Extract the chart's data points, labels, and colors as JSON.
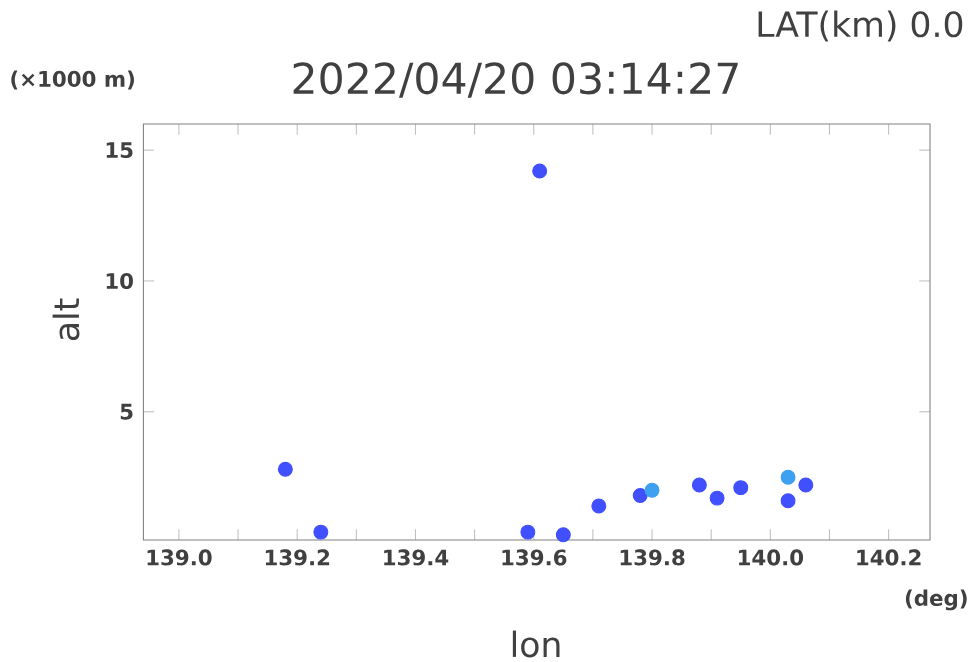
{
  "chart_data": {
    "type": "scatter",
    "title": "2022/04/20 03:14:27",
    "subtitle": "LAT(km) 0.0",
    "xlabel": "lon",
    "ylabel": "alt",
    "annotations": [
      "(×1000 m)",
      "(deg)"
    ],
    "xlim": [
      138.94,
      140.27
    ],
    "ylim": [
      0.1,
      16
    ],
    "xticks": [
      {
        "value": 139.0,
        "label": "139.0"
      },
      {
        "value": 139.1,
        "label": null
      },
      139.2,
      {
        "value": 139.3,
        "label": null
      },
      139.4,
      {
        "value": 139.5,
        "label": null
      },
      139.6,
      {
        "value": 139.7,
        "label": null
      },
      139.8,
      {
        "value": 139.9,
        "label": null
      },
      {
        "value": 140.0,
        "label": "140.0"
      },
      {
        "value": 140.1,
        "label": null
      },
      140.2
    ],
    "yticks": [
      5,
      10,
      15
    ],
    "grid": false,
    "marker": "circle",
    "series": [
      {
        "color": "#4050ff",
        "x": [
          139.18,
          139.61,
          139.24,
          139.59,
          139.65,
          139.71,
          139.78,
          139.88,
          139.91,
          139.95,
          140.03,
          140.06
        ],
        "values": [
          2.8,
          14.2,
          0.4,
          0.4,
          0.3,
          1.4,
          1.8,
          2.2,
          1.7,
          2.1,
          1.6,
          2.2
        ]
      },
      {
        "color": "#3da0f0",
        "x": [
          139.8,
          140.03
        ],
        "values": [
          2.0,
          2.5
        ]
      }
    ]
  }
}
